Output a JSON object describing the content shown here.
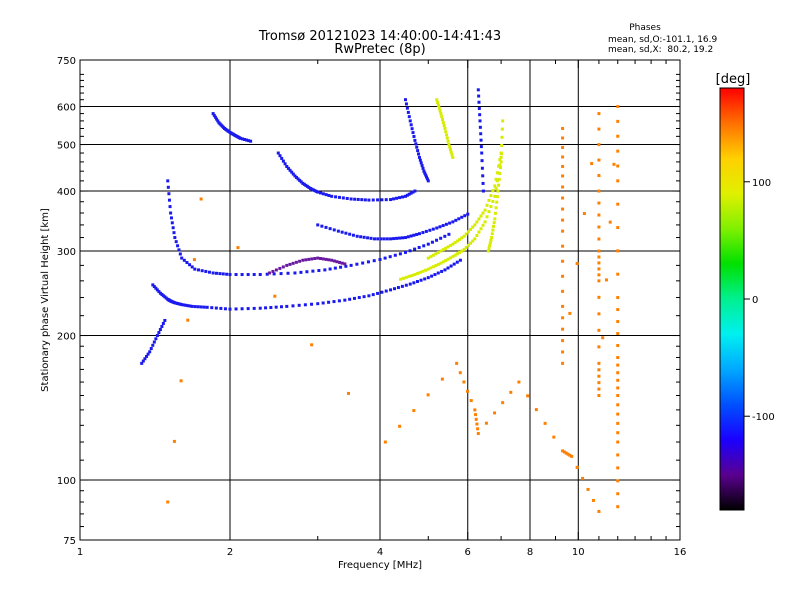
{
  "chart_data": {
    "type": "scatter",
    "title": "Tromsø 20121023 14:40:00-14:41:43",
    "subtitle": "RwPretec (8p)",
    "xlabel": "Frequency [MHz]",
    "ylabel": "Stationary phase Virtual Height [km]",
    "x_scale": "log",
    "y_scale": "log",
    "xlim": [
      1,
      16
    ],
    "ylim": [
      75,
      750
    ],
    "grid": true,
    "x_ticks": [
      1,
      2,
      4,
      6,
      8,
      10,
      16
    ],
    "x_tick_labels": [
      "1",
      "2",
      "4",
      "6",
      "8",
      "10",
      "16"
    ],
    "x_gridlines": [
      2,
      4,
      6,
      8,
      10
    ],
    "y_ticks": [
      75,
      100,
      200,
      300,
      400,
      500,
      600,
      750
    ],
    "y_tick_labels": [
      "75",
      "100",
      "200",
      "300",
      "400",
      "500",
      "600",
      "750"
    ],
    "y_gridlines": [
      100,
      200,
      300,
      400,
      500,
      600
    ],
    "phase_box": {
      "title": "Phases",
      "line_o": "mean, sd,O:-101.1, 16.9",
      "line_x": "mean, sd,X:  80.2, 19.2"
    },
    "colorbar": {
      "label": "[deg]",
      "range": [
        -180,
        180
      ],
      "tick_values": [
        100,
        0,
        -100
      ],
      "tick_labels": [
        "100",
        "0",
        "-100"
      ],
      "colors": [
        "#000000",
        "#5a0090",
        "#1a00ff",
        "#0050ff",
        "#00a8ff",
        "#00f0f0",
        "#00f090",
        "#00e000",
        "#80f000",
        "#e0f000",
        "#ffd000",
        "#ff7000",
        "#ff0000"
      ]
    },
    "series": [
      {
        "segments": [
          {
            "x": [
              1.4,
              1.45,
              1.5,
              1.52,
              1.55,
              1.6,
              1.68,
              1.8,
              2.0,
              2.3,
              2.6,
              3.0,
              3.4,
              3.8,
              4.2,
              4.6,
              5.0,
              5.4,
              5.8
            ],
            "y": [
              255,
              245,
              238,
              236,
              234,
              232,
              230,
              229,
              227,
              228,
              230,
              233,
              237,
              242,
              249,
              256,
              264,
              274,
              287
            ]
          },
          {
            "x": [
              1.5,
              1.52,
              1.55,
              1.6,
              1.7,
              1.85,
              2.0,
              2.3,
              2.7,
              3.1,
              3.5,
              4.0,
              4.5,
              5.0,
              5.5
            ],
            "y": [
              420,
              360,
              320,
              290,
              275,
              270,
              268,
              268,
              270,
              274,
              280,
              288,
              298,
              310,
              325
            ]
          },
          {
            "x": [
              1.85,
              1.9,
              1.95,
              2.0,
              2.05,
              2.1,
              2.2
            ],
            "y": [
              580,
              555,
              540,
              530,
              522,
              515,
              508
            ]
          },
          {
            "x": [
              2.5,
              2.6,
              2.7,
              2.8,
              2.9,
              3.0,
              3.2,
              3.5,
              3.8,
              4.2,
              4.5,
              4.7
            ],
            "y": [
              480,
              450,
              430,
              415,
              405,
              398,
              390,
              385,
              383,
              384,
              390,
              400
            ]
          },
          {
            "x": [
              3.0,
              3.3,
              3.6,
              3.9,
              4.2,
              4.5,
              4.8,
              5.2,
              5.6,
              6.0
            ],
            "y": [
              340,
              330,
              322,
              318,
              318,
              320,
              326,
              335,
              345,
              358
            ]
          },
          {
            "x": [
              1.33,
              1.38,
              1.43,
              1.48
            ],
            "y": [
              175,
              185,
              200,
              215
            ]
          },
          {
            "x": [
              4.5,
              4.6,
              4.7,
              4.8,
              4.9,
              5.0
            ],
            "y": [
              620,
              560,
              510,
              470,
              440,
              420
            ]
          },
          {
            "x": [
              6.3,
              6.35,
              6.4,
              6.45
            ],
            "y": [
              650,
              560,
              480,
              400
            ]
          }
        ],
        "color": "#1a1aee"
      },
      {
        "segments": [
          {
            "x": [
              4.4,
              4.7,
              5.0,
              5.3,
              5.6,
              5.9,
              6.2,
              6.5,
              6.8,
              7.0
            ],
            "y": [
              262,
              268,
              275,
              283,
              292,
              302,
              318,
              345,
              390,
              470
            ]
          },
          {
            "x": [
              5.0,
              5.3,
              5.6,
              5.9,
              6.2,
              6.5,
              6.8,
              7.0
            ],
            "y": [
              290,
              300,
              310,
              322,
              340,
              365,
              410,
              480
            ]
          },
          {
            "x": [
              6.6,
              6.7,
              6.8,
              6.9,
              7.0,
              7.05
            ],
            "y": [
              300,
              320,
              350,
              400,
              460,
              560
            ]
          },
          {
            "x": [
              5.2,
              5.3,
              5.4,
              5.5,
              5.6
            ],
            "y": [
              620,
              580,
              540,
              500,
              470
            ]
          }
        ],
        "color": "#d8ec00"
      },
      {
        "segments": [
          {
            "x": [
              2.4,
              2.6,
              2.8,
              3.0,
              3.2,
              3.4
            ],
            "y": [
              270,
              280,
              287,
              290,
              287,
              282
            ]
          }
        ],
        "color": "#6a1aa0"
      },
      {
        "segments": [
          {
            "x": [
              9.3,
              9.3,
              9.3,
              9.3,
              9.3,
              11.0,
              11.0,
              11.0,
              11.0,
              11.0,
              11.0,
              12.0,
              12.0,
              12.0,
              12.0,
              12.0,
              12.0,
              12.0
            ],
            "y": [
              540,
              430,
              330,
              230,
              175,
              580,
              400,
              300,
              260,
              175,
              150,
              600,
              420,
              240,
              180,
              150,
              120,
              88
            ]
          },
          {
            "x": [
              1.5,
              1.75,
              4.1,
              5.7,
              6.2,
              6.3,
              7.6,
              9.3,
              9.7,
              11.0
            ],
            "y": [
              90,
              385,
              120,
              175,
              140,
              125,
              160,
              115,
              112,
              86
            ]
          }
        ],
        "color": "#ff8000"
      }
    ]
  }
}
